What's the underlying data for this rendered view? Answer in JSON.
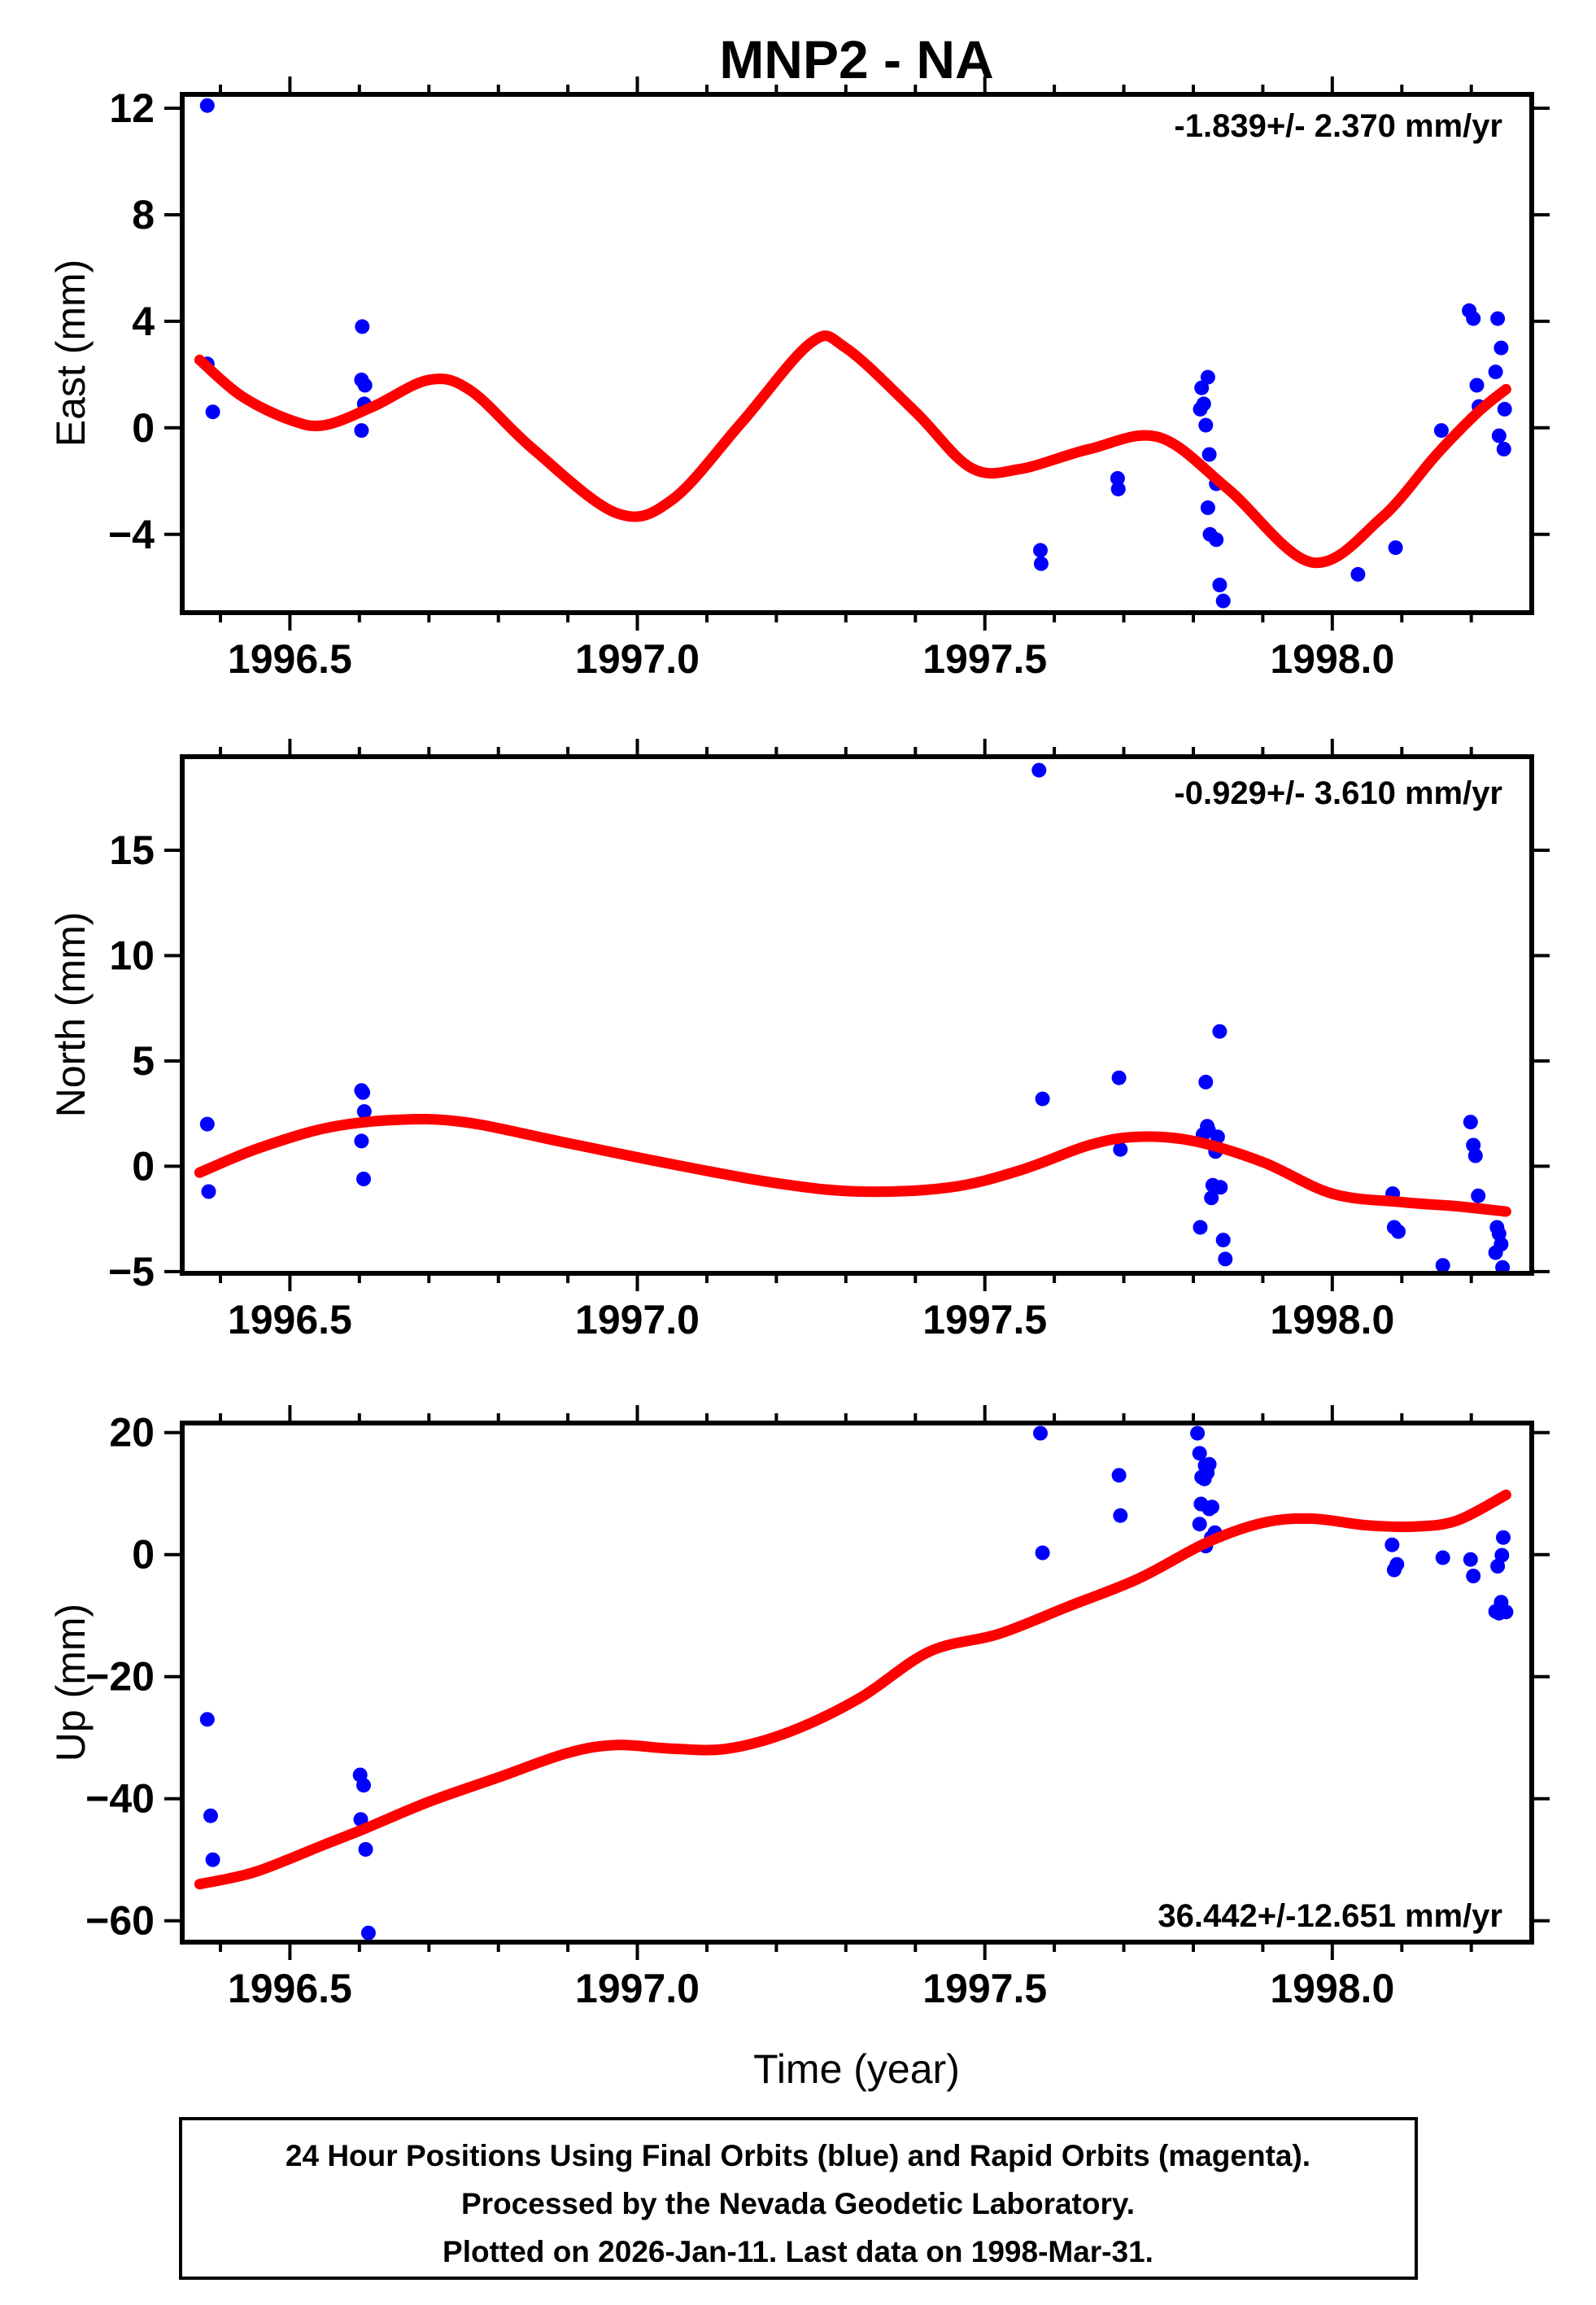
{
  "chart_data": {
    "type": "scatter",
    "title": "MNP2 - NA",
    "xlabel": "Time (year)",
    "x_range": [
      1996.345,
      1998.287
    ],
    "x_major_ticks": [
      1996.5,
      1997.0,
      1997.5,
      1998.0
    ],
    "x_major_labels": [
      "1996.5",
      "1997.0",
      "1997.5",
      "1998.0"
    ],
    "x_minor_step": 0.1,
    "grid": "off",
    "point_color": "#0000ff",
    "fit_color": "#ff0000",
    "axis_color": "#000000",
    "panels": [
      {
        "id": "east",
        "ylabel": "East (mm)",
        "annotation": "-1.839+/- 2.370 mm/yr",
        "annotation_corner": "top-right",
        "y_range": [
          -6.94,
          12.52
        ],
        "y_ticks": [
          -4,
          0,
          4,
          8,
          12
        ],
        "y_tick_labels": [
          "−4",
          "0",
          "4",
          "8",
          "12"
        ],
        "points": [
          [
            1996.381,
            12.1
          ],
          [
            1996.381,
            2.4
          ],
          [
            1996.389,
            0.6
          ],
          [
            1996.604,
            3.8
          ],
          [
            1996.603,
            1.8
          ],
          [
            1996.608,
            1.6
          ],
          [
            1996.607,
            0.9
          ],
          [
            1996.603,
            -0.1
          ],
          [
            1997.58,
            -4.6
          ],
          [
            1997.581,
            -5.1
          ],
          [
            1997.691,
            -1.9
          ],
          [
            1997.692,
            -2.3
          ],
          [
            1997.812,
            1.5
          ],
          [
            1997.821,
            1.9
          ],
          [
            1997.815,
            0.9
          ],
          [
            1997.81,
            0.7
          ],
          [
            1997.818,
            0.1
          ],
          [
            1997.823,
            -1.0
          ],
          [
            1997.833,
            -2.1
          ],
          [
            1997.821,
            -3.0
          ],
          [
            1997.824,
            -4.0
          ],
          [
            1997.833,
            -4.2
          ],
          [
            1997.838,
            -5.9
          ],
          [
            1997.843,
            -6.5
          ],
          [
            1998.037,
            -5.5
          ],
          [
            1998.091,
            -4.5
          ],
          [
            1998.157,
            -0.1
          ],
          [
            1998.197,
            4.4
          ],
          [
            1998.203,
            4.1
          ],
          [
            1998.208,
            1.6
          ],
          [
            1998.211,
            0.8
          ],
          [
            1998.235,
            2.1
          ],
          [
            1998.238,
            4.1
          ],
          [
            1998.243,
            3.0
          ],
          [
            1998.24,
            -0.3
          ],
          [
            1998.247,
            -0.8
          ],
          [
            1998.248,
            0.7
          ]
        ],
        "fit": [
          [
            1996.37,
            2.55
          ],
          [
            1996.43,
            1.2
          ],
          [
            1996.5,
            0.3
          ],
          [
            1996.55,
            0.1
          ],
          [
            1996.62,
            0.8
          ],
          [
            1996.7,
            1.8
          ],
          [
            1996.76,
            1.4
          ],
          [
            1996.85,
            -0.8
          ],
          [
            1996.97,
            -3.2
          ],
          [
            1997.05,
            -2.7
          ],
          [
            1997.15,
            0.2
          ],
          [
            1997.25,
            3.2
          ],
          [
            1997.3,
            3.0
          ],
          [
            1997.4,
            0.6
          ],
          [
            1997.48,
            -1.5
          ],
          [
            1997.55,
            -1.55
          ],
          [
            1997.65,
            -0.8
          ],
          [
            1997.75,
            -0.35
          ],
          [
            1997.85,
            -2.3
          ],
          [
            1997.97,
            -5.05
          ],
          [
            1998.07,
            -3.4
          ],
          [
            1998.15,
            -1.0
          ],
          [
            1998.21,
            0.6
          ],
          [
            1998.25,
            1.45
          ]
        ]
      },
      {
        "id": "north",
        "ylabel": "North (mm)",
        "annotation": "-0.929+/- 3.610 mm/yr",
        "annotation_corner": "top-right",
        "y_range": [
          -5.08,
          19.44
        ],
        "y_ticks": [
          -5,
          0,
          5,
          10,
          15
        ],
        "y_tick_labels": [
          "−5",
          "0",
          "5",
          "10",
          "15"
        ],
        "points": [
          [
            1996.381,
            2.0
          ],
          [
            1996.383,
            -1.2
          ],
          [
            1996.603,
            3.6
          ],
          [
            1996.605,
            3.5
          ],
          [
            1996.607,
            2.6
          ],
          [
            1996.603,
            1.2
          ],
          [
            1996.606,
            -0.6
          ],
          [
            1997.578,
            18.8
          ],
          [
            1997.583,
            3.2
          ],
          [
            1997.693,
            4.2
          ],
          [
            1997.695,
            0.8
          ],
          [
            1997.838,
            6.4
          ],
          [
            1997.818,
            4.0
          ],
          [
            1997.82,
            1.9
          ],
          [
            1997.814,
            1.5
          ],
          [
            1997.822,
            1.7
          ],
          [
            1997.835,
            1.4
          ],
          [
            1997.832,
            0.7
          ],
          [
            1997.828,
            -0.9
          ],
          [
            1997.839,
            -1.0
          ],
          [
            1997.826,
            -1.5
          ],
          [
            1997.81,
            -2.9
          ],
          [
            1997.843,
            -3.5
          ],
          [
            1997.846,
            -4.4
          ],
          [
            1998.087,
            -1.3
          ],
          [
            1998.089,
            -2.9
          ],
          [
            1998.095,
            -3.1
          ],
          [
            1998.159,
            -4.7
          ],
          [
            1998.199,
            2.1
          ],
          [
            1998.203,
            1.0
          ],
          [
            1998.206,
            0.5
          ],
          [
            1998.21,
            -1.4
          ],
          [
            1998.237,
            -2.9
          ],
          [
            1998.24,
            -3.2
          ],
          [
            1998.243,
            -3.7
          ],
          [
            1998.235,
            -4.1
          ],
          [
            1998.245,
            -4.8
          ]
        ],
        "fit": [
          [
            1996.37,
            -0.3
          ],
          [
            1996.45,
            0.8
          ],
          [
            1996.55,
            1.8
          ],
          [
            1996.65,
            2.2
          ],
          [
            1996.75,
            2.1
          ],
          [
            1996.9,
            1.1
          ],
          [
            1997.05,
            0.1
          ],
          [
            1997.2,
            -0.8
          ],
          [
            1997.32,
            -1.2
          ],
          [
            1997.45,
            -1.0
          ],
          [
            1997.55,
            -0.2
          ],
          [
            1997.65,
            1.0
          ],
          [
            1997.72,
            1.4
          ],
          [
            1997.8,
            1.2
          ],
          [
            1997.9,
            0.2
          ],
          [
            1998.0,
            -1.3
          ],
          [
            1998.1,
            -1.7
          ],
          [
            1998.18,
            -1.9
          ],
          [
            1998.25,
            -2.15
          ]
        ]
      },
      {
        "id": "up",
        "ylabel": "Up (mm)",
        "annotation": "36.442+/-12.651 mm/yr",
        "annotation_corner": "bottom-right",
        "y_range": [
          -63.5,
          21.56
        ],
        "y_ticks": [
          -60,
          -40,
          -20,
          0,
          20
        ],
        "y_tick_labels": [
          "−60",
          "−40",
          "−20",
          "0",
          "20"
        ],
        "points": [
          [
            1996.381,
            -27.0
          ],
          [
            1996.386,
            -42.8
          ],
          [
            1996.389,
            -50.0
          ],
          [
            1996.601,
            -36.1
          ],
          [
            1996.606,
            -37.8
          ],
          [
            1996.602,
            -43.4
          ],
          [
            1996.609,
            -48.3
          ],
          [
            1996.613,
            -62.0
          ],
          [
            1997.58,
            19.9
          ],
          [
            1997.583,
            0.3
          ],
          [
            1997.693,
            13.0
          ],
          [
            1997.695,
            6.4
          ],
          [
            1997.806,
            19.9
          ],
          [
            1997.809,
            16.6
          ],
          [
            1997.817,
            14.6
          ],
          [
            1997.823,
            14.8
          ],
          [
            1997.812,
            12.7
          ],
          [
            1997.816,
            12.4
          ],
          [
            1997.82,
            13.4
          ],
          [
            1997.811,
            8.3
          ],
          [
            1997.823,
            7.5
          ],
          [
            1997.827,
            7.8
          ],
          [
            1997.809,
            5.0
          ],
          [
            1997.818,
            1.4
          ],
          [
            1997.826,
            2.8
          ],
          [
            1997.831,
            3.6
          ],
          [
            1998.086,
            1.6
          ],
          [
            1998.089,
            -2.5
          ],
          [
            1998.093,
            -1.6
          ],
          [
            1998.159,
            -0.5
          ],
          [
            1998.199,
            -0.8
          ],
          [
            1998.203,
            -3.5
          ],
          [
            1998.235,
            -9.3
          ],
          [
            1998.238,
            -1.9
          ],
          [
            1998.24,
            -9.6
          ],
          [
            1998.243,
            -7.8
          ],
          [
            1998.244,
            -0.1
          ],
          [
            1998.246,
            2.8
          ],
          [
            1998.25,
            -9.4
          ]
        ],
        "fit": [
          [
            1996.37,
            -54.0
          ],
          [
            1996.45,
            -52.0
          ],
          [
            1996.55,
            -47.5
          ],
          [
            1996.61,
            -44.8
          ],
          [
            1996.7,
            -40.5
          ],
          [
            1996.8,
            -36.5
          ],
          [
            1996.9,
            -32.5
          ],
          [
            1996.97,
            -31.2
          ],
          [
            1997.05,
            -31.8
          ],
          [
            1997.13,
            -31.8
          ],
          [
            1997.22,
            -29.0
          ],
          [
            1997.32,
            -23.5
          ],
          [
            1997.42,
            -15.9
          ],
          [
            1997.52,
            -13.0
          ],
          [
            1997.62,
            -8.5
          ],
          [
            1997.72,
            -4.0
          ],
          [
            1997.82,
            2.0
          ],
          [
            1997.9,
            5.2
          ],
          [
            1997.97,
            5.9
          ],
          [
            1998.05,
            4.8
          ],
          [
            1998.12,
            4.6
          ],
          [
            1998.18,
            5.6
          ],
          [
            1998.25,
            9.8
          ]
        ]
      }
    ]
  },
  "caption": {
    "lines": [
      "24 Hour Positions Using Final Orbits (blue) and Rapid Orbits (magenta).",
      "Processed by the Nevada Geodetic Laboratory.",
      "Plotted on 2026-Jan-11. Last data on 1998-Mar-31."
    ]
  }
}
